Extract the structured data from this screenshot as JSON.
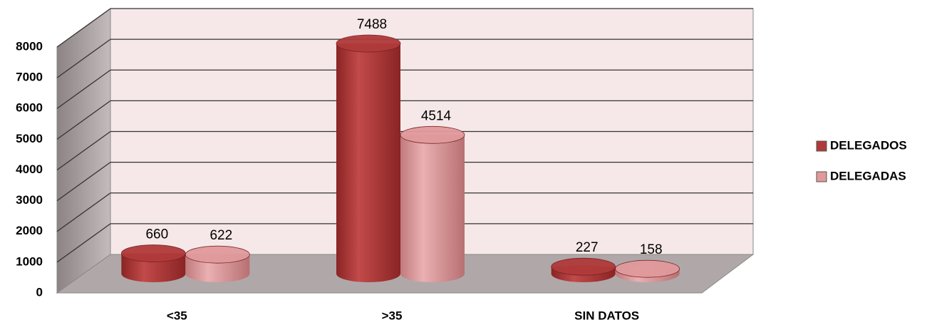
{
  "chart_data": {
    "type": "bar3d",
    "categories": [
      "<35",
      ">35",
      "SIN DATOS"
    ],
    "series": [
      {
        "name": "DELEGADOS",
        "color": "#b03a3a",
        "values": [
          660,
          7488,
          227
        ]
      },
      {
        "name": "DELEGADAS",
        "color": "#e09a9c",
        "values": [
          622,
          4514,
          158
        ]
      }
    ],
    "ylim": [
      0,
      8000
    ],
    "yticks": [
      0,
      1000,
      2000,
      3000,
      4000,
      5000,
      6000,
      7000,
      8000
    ],
    "grid": true,
    "legend": "right"
  }
}
